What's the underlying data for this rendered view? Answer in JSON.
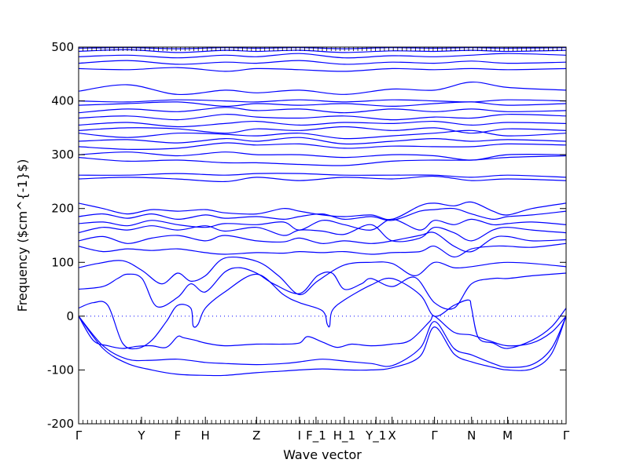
{
  "chart_data": {
    "type": "line",
    "title": "",
    "xlabel": "Wave vector",
    "ylabel": "Frequency ($cm^{-1}$)",
    "ylim": [
      -200,
      500
    ],
    "yticks": [
      -200,
      -100,
      0,
      100,
      200,
      300,
      400,
      500
    ],
    "x_tick_labels": [
      "Γ",
      "Y",
      "F",
      "H",
      "Z",
      "I",
      "F_1",
      "H_1",
      "Y_1",
      "X",
      "Γ",
      "N",
      "M",
      "Γ"
    ],
    "x_tick_positions": [
      0,
      0.129,
      0.203,
      0.26,
      0.365,
      0.453,
      0.487,
      0.545,
      0.61,
      0.643,
      0.73,
      0.806,
      0.88,
      1.0
    ],
    "zero_line": true,
    "series_color": "#0000ff",
    "series": [
      {
        "x": [
          0,
          0.05,
          0.1,
          0.15,
          0.203,
          0.26,
          0.3,
          0.365,
          0.42,
          0.453,
          0.5,
          0.55,
          0.6,
          0.643,
          0.7,
          0.73,
          0.77,
          0.806,
          0.85,
          0.88,
          0.93,
          0.97,
          1.0
        ],
        "y": [
          0,
          -60,
          -88,
          -100,
          -108,
          -110,
          -110,
          -105,
          -102,
          -100,
          -98,
          -100,
          -100,
          -96,
          -75,
          -20,
          -70,
          -85,
          -95,
          -100,
          -98,
          -70,
          0
        ]
      },
      {
        "x": [
          0,
          0.05,
          0.1,
          0.15,
          0.203,
          0.26,
          0.3,
          0.365,
          0.42,
          0.453,
          0.5,
          0.55,
          0.6,
          0.643,
          0.7,
          0.73,
          0.77,
          0.806,
          0.85,
          0.88,
          0.93,
          0.97,
          1.0
        ],
        "y": [
          0,
          -55,
          -80,
          -82,
          -80,
          -86,
          -88,
          -90,
          -88,
          -85,
          -80,
          -84,
          -88,
          -92,
          -60,
          -10,
          -60,
          -72,
          -88,
          -95,
          -90,
          -60,
          0
        ]
      },
      {
        "x": [
          0,
          0.03,
          0.06,
          0.09,
          0.12,
          0.15,
          0.18,
          0.203,
          0.215,
          0.24,
          0.26,
          0.3,
          0.365,
          0.42,
          0.453,
          0.47,
          0.5,
          0.53,
          0.56,
          0.6,
          0.643,
          0.68,
          0.72,
          0.73,
          0.77,
          0.806,
          0.84,
          0.88,
          0.93,
          0.97,
          1.0
        ],
        "y": [
          0,
          -45,
          -55,
          -60,
          -56,
          -55,
          -58,
          -38,
          -40,
          -45,
          -50,
          -55,
          -52,
          -52,
          -50,
          -38,
          -48,
          -58,
          -52,
          -55,
          -52,
          -45,
          -10,
          0,
          -30,
          -35,
          -45,
          -55,
          -50,
          -30,
          0
        ]
      },
      {
        "x": [
          0,
          0.03,
          0.06,
          0.09,
          0.12,
          0.15,
          0.18,
          0.203,
          0.23,
          0.235,
          0.245,
          0.26,
          0.3,
          0.365,
          0.42,
          0.453,
          0.5,
          0.51,
          0.515,
          0.52,
          0.545,
          0.6,
          0.643,
          0.7,
          0.73,
          0.77,
          0.8,
          0.806,
          0.82,
          0.85,
          0.88,
          0.93,
          0.97,
          1.0
        ],
        "y": [
          15,
          25,
          20,
          -50,
          -60,
          -45,
          -10,
          20,
          15,
          -18,
          -15,
          15,
          45,
          78,
          40,
          25,
          10,
          -15,
          -18,
          10,
          30,
          58,
          70,
          40,
          0,
          20,
          30,
          15,
          -40,
          -50,
          -60,
          -45,
          -20,
          15
        ]
      },
      {
        "x": [
          0,
          0.05,
          0.08,
          0.1,
          0.13,
          0.16,
          0.203,
          0.23,
          0.26,
          0.3,
          0.33,
          0.365,
          0.4,
          0.453,
          0.49,
          0.52,
          0.545,
          0.58,
          0.6,
          0.643,
          0.69,
          0.73,
          0.77,
          0.806,
          0.85,
          0.88,
          0.93,
          1.0
        ],
        "y": [
          50,
          55,
          70,
          78,
          70,
          18,
          35,
          60,
          45,
          82,
          90,
          80,
          60,
          42,
          75,
          80,
          50,
          60,
          70,
          55,
          72,
          25,
          15,
          60,
          70,
          70,
          75,
          80
        ]
      },
      {
        "x": [
          0,
          0.04,
          0.09,
          0.13,
          0.17,
          0.203,
          0.23,
          0.26,
          0.3,
          0.365,
          0.41,
          0.453,
          0.49,
          0.545,
          0.6,
          0.643,
          0.69,
          0.73,
          0.77,
          0.806,
          0.85,
          0.88,
          0.93,
          1.0
        ],
        "y": [
          90,
          98,
          103,
          85,
          60,
          80,
          65,
          75,
          108,
          102,
          75,
          40,
          65,
          95,
          100,
          98,
          75,
          100,
          90,
          92,
          98,
          100,
          98,
          92
        ]
      },
      {
        "x": [
          0,
          0.05,
          0.1,
          0.15,
          0.203,
          0.26,
          0.3,
          0.365,
          0.42,
          0.453,
          0.5,
          0.545,
          0.6,
          0.643,
          0.7,
          0.73,
          0.77,
          0.806,
          0.85,
          0.88,
          0.93,
          1.0
        ],
        "y": [
          130,
          120,
          125,
          122,
          125,
          118,
          115,
          118,
          117,
          120,
          118,
          120,
          115,
          118,
          120,
          130,
          110,
          125,
          130,
          130,
          128,
          135
        ]
      },
      {
        "x": [
          0,
          0.05,
          0.1,
          0.15,
          0.203,
          0.26,
          0.3,
          0.365,
          0.42,
          0.453,
          0.5,
          0.545,
          0.6,
          0.643,
          0.7,
          0.73,
          0.77,
          0.806,
          0.85,
          0.88,
          0.93,
          1.0
        ],
        "y": [
          140,
          148,
          135,
          145,
          150,
          140,
          150,
          140,
          138,
          145,
          135,
          140,
          135,
          140,
          150,
          155,
          130,
          120,
          145,
          148,
          140,
          142
        ]
      },
      {
        "x": [
          0,
          0.05,
          0.1,
          0.15,
          0.203,
          0.26,
          0.3,
          0.365,
          0.42,
          0.453,
          0.5,
          0.545,
          0.6,
          0.643,
          0.7,
          0.73,
          0.77,
          0.806,
          0.85,
          0.88,
          0.93,
          1.0
        ],
        "y": [
          155,
          165,
          160,
          168,
          160,
          168,
          158,
          165,
          150,
          160,
          158,
          152,
          170,
          140,
          145,
          165,
          155,
          140,
          160,
          165,
          160,
          155
        ]
      },
      {
        "x": [
          0,
          0.05,
          0.1,
          0.15,
          0.203,
          0.26,
          0.3,
          0.365,
          0.42,
          0.453,
          0.5,
          0.545,
          0.6,
          0.643,
          0.7,
          0.73,
          0.77,
          0.806,
          0.85,
          0.88,
          0.93,
          1.0
        ],
        "y": [
          172,
          175,
          168,
          178,
          170,
          165,
          172,
          170,
          175,
          160,
          178,
          170,
          160,
          180,
          160,
          178,
          170,
          180,
          170,
          172,
          175,
          170
        ]
      },
      {
        "x": [
          0,
          0.05,
          0.1,
          0.15,
          0.203,
          0.26,
          0.3,
          0.365,
          0.42,
          0.453,
          0.5,
          0.545,
          0.6,
          0.643,
          0.7,
          0.73,
          0.77,
          0.806,
          0.85,
          0.88,
          0.93,
          1.0
        ],
        "y": [
          185,
          190,
          182,
          190,
          180,
          188,
          182,
          185,
          180,
          185,
          190,
          180,
          185,
          178,
          195,
          198,
          200,
          190,
          180,
          185,
          188,
          195
        ]
      },
      {
        "x": [
          0,
          0.05,
          0.1,
          0.15,
          0.203,
          0.26,
          0.3,
          0.365,
          0.42,
          0.453,
          0.5,
          0.545,
          0.6,
          0.643,
          0.7,
          0.73,
          0.77,
          0.806,
          0.85,
          0.88,
          0.93,
          1.0
        ],
        "y": [
          210,
          200,
          190,
          198,
          195,
          198,
          192,
          190,
          200,
          195,
          188,
          185,
          188,
          180,
          205,
          210,
          205,
          212,
          195,
          188,
          200,
          210
        ]
      },
      {
        "x": [
          0,
          0.1,
          0.2,
          0.3,
          0.365,
          0.453,
          0.545,
          0.643,
          0.73,
          0.806,
          0.88,
          1.0
        ],
        "y": [
          255,
          258,
          255,
          250,
          258,
          252,
          258,
          255,
          260,
          252,
          255,
          252
        ]
      },
      {
        "x": [
          0,
          0.1,
          0.2,
          0.3,
          0.365,
          0.453,
          0.545,
          0.643,
          0.73,
          0.806,
          0.88,
          1.0
        ],
        "y": [
          262,
          262,
          265,
          262,
          265,
          265,
          262,
          262,
          262,
          258,
          262,
          258
        ]
      },
      {
        "x": [
          0,
          0.1,
          0.203,
          0.3,
          0.365,
          0.453,
          0.545,
          0.643,
          0.73,
          0.806,
          0.88,
          1.0
        ],
        "y": [
          295,
          288,
          290,
          285,
          285,
          282,
          280,
          288,
          290,
          290,
          295,
          298
        ]
      },
      {
        "x": [
          0,
          0.1,
          0.203,
          0.3,
          0.365,
          0.453,
          0.545,
          0.643,
          0.73,
          0.806,
          0.88,
          1.0
        ],
        "y": [
          300,
          305,
          298,
          305,
          300,
          300,
          295,
          300,
          298,
          290,
          300,
          300
        ]
      },
      {
        "x": [
          0,
          0.1,
          0.203,
          0.3,
          0.365,
          0.453,
          0.545,
          0.643,
          0.73,
          0.806,
          0.88,
          1.0
        ],
        "y": [
          315,
          310,
          312,
          322,
          318,
          320,
          312,
          316,
          315,
          315,
          320,
          318
        ]
      },
      {
        "x": [
          0,
          0.1,
          0.203,
          0.3,
          0.365,
          0.453,
          0.545,
          0.643,
          0.73,
          0.806,
          0.88,
          1.0
        ],
        "y": [
          325,
          328,
          322,
          330,
          325,
          332,
          320,
          325,
          330,
          325,
          328,
          325
        ]
      },
      {
        "x": [
          0,
          0.1,
          0.203,
          0.3,
          0.365,
          0.453,
          0.545,
          0.643,
          0.73,
          0.806,
          0.88,
          1.0
        ],
        "y": [
          340,
          332,
          340,
          338,
          335,
          340,
          330,
          335,
          340,
          345,
          335,
          340
        ]
      },
      {
        "x": [
          0,
          0.1,
          0.203,
          0.3,
          0.365,
          0.453,
          0.545,
          0.643,
          0.73,
          0.806,
          0.88,
          1.0
        ],
        "y": [
          345,
          350,
          348,
          340,
          348,
          345,
          352,
          345,
          350,
          340,
          348,
          345
        ]
      },
      {
        "x": [
          0,
          0.1,
          0.203,
          0.3,
          0.365,
          0.453,
          0.545,
          0.643,
          0.73,
          0.806,
          0.88,
          1.0
        ],
        "y": [
          355,
          360,
          352,
          358,
          362,
          355,
          360,
          358,
          362,
          355,
          360,
          358
        ]
      },
      {
        "x": [
          0,
          0.1,
          0.203,
          0.3,
          0.365,
          0.453,
          0.545,
          0.643,
          0.73,
          0.806,
          0.88,
          1.0
        ],
        "y": [
          368,
          372,
          365,
          375,
          370,
          368,
          372,
          365,
          370,
          368,
          375,
          372
        ]
      },
      {
        "x": [
          0,
          0.1,
          0.203,
          0.3,
          0.365,
          0.453,
          0.545,
          0.643,
          0.73,
          0.806,
          0.88,
          1.0
        ],
        "y": [
          378,
          385,
          380,
          388,
          382,
          385,
          378,
          385,
          380,
          385,
          380,
          382
        ]
      },
      {
        "x": [
          0,
          0.1,
          0.203,
          0.3,
          0.365,
          0.453,
          0.545,
          0.643,
          0.73,
          0.806,
          0.88,
          1.0
        ],
        "y": [
          392,
          395,
          398,
          390,
          395,
          392,
          395,
          390,
          395,
          398,
          392,
          395
        ]
      },
      {
        "x": [
          0,
          0.1,
          0.203,
          0.3,
          0.365,
          0.453,
          0.545,
          0.643,
          0.73,
          0.806,
          0.88,
          1.0
        ],
        "y": [
          400,
          398,
          402,
          400,
          398,
          402,
          398,
          402,
          400,
          398,
          402,
          400
        ]
      },
      {
        "x": [
          0,
          0.1,
          0.203,
          0.3,
          0.365,
          0.453,
          0.545,
          0.643,
          0.73,
          0.806,
          0.88,
          1.0
        ],
        "y": [
          418,
          430,
          412,
          420,
          415,
          420,
          412,
          422,
          420,
          435,
          425,
          420
        ]
      },
      {
        "x": [
          0,
          0.1,
          0.203,
          0.3,
          0.365,
          0.453,
          0.545,
          0.643,
          0.73,
          0.806,
          0.88,
          1.0
        ],
        "y": [
          460,
          458,
          462,
          455,
          460,
          458,
          455,
          460,
          458,
          460,
          458,
          460
        ]
      },
      {
        "x": [
          0,
          0.1,
          0.203,
          0.3,
          0.365,
          0.453,
          0.545,
          0.643,
          0.73,
          0.806,
          0.88,
          1.0
        ],
        "y": [
          470,
          475,
          468,
          472,
          470,
          475,
          468,
          472,
          470,
          474,
          470,
          472
        ]
      },
      {
        "x": [
          0,
          0.1,
          0.203,
          0.3,
          0.365,
          0.453,
          0.545,
          0.643,
          0.73,
          0.806,
          0.88,
          1.0
        ],
        "y": [
          482,
          485,
          480,
          485,
          482,
          488,
          480,
          484,
          482,
          485,
          488,
          485
        ]
      },
      {
        "x": [
          0,
          0.1,
          0.203,
          0.3,
          0.365,
          0.453,
          0.545,
          0.643,
          0.73,
          0.806,
          0.88,
          1.0
        ],
        "y": [
          492,
          495,
          490,
          494,
          492,
          494,
          490,
          493,
          492,
          494,
          492,
          494
        ]
      },
      {
        "x": [
          0,
          0.1,
          0.203,
          0.3,
          0.365,
          0.453,
          0.545,
          0.643,
          0.73,
          0.806,
          0.88,
          1.0
        ],
        "y": [
          498,
          499,
          497,
          499,
          498,
          499,
          497,
          499,
          498,
          499,
          498,
          499
        ]
      }
    ]
  }
}
